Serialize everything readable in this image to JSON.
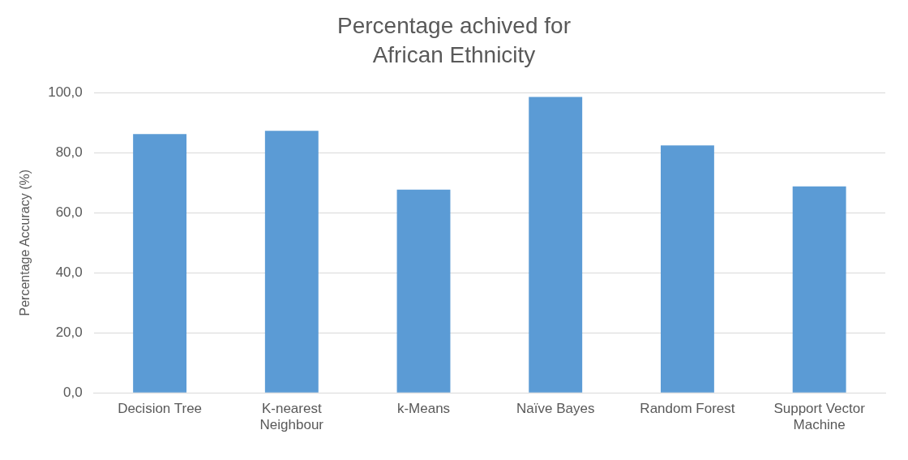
{
  "chart_data": {
    "type": "bar",
    "title": "Percentage achived for African Ethnicity",
    "categories": [
      "Decision Tree",
      "K-nearest Neighbour",
      "k-Means",
      "Naïve Bayes",
      "Random Forest",
      "Support Vector Machine"
    ],
    "values": [
      86.2,
      87.3,
      67.7,
      98.6,
      82.4,
      68.8
    ],
    "color": "#5b9bd5",
    "ylabel": "Percentage Accuracy (%)",
    "ylim": [
      0,
      100
    ],
    "yticks": [
      {
        "value": 0,
        "label": "0,0"
      },
      {
        "value": 20,
        "label": "20,0"
      },
      {
        "value": 40,
        "label": "40,0"
      },
      {
        "value": 60,
        "label": "60,0"
      },
      {
        "value": 80,
        "label": "80,0"
      },
      {
        "value": 100,
        "label": "100,0"
      }
    ],
    "grid": "y",
    "legend": false
  }
}
